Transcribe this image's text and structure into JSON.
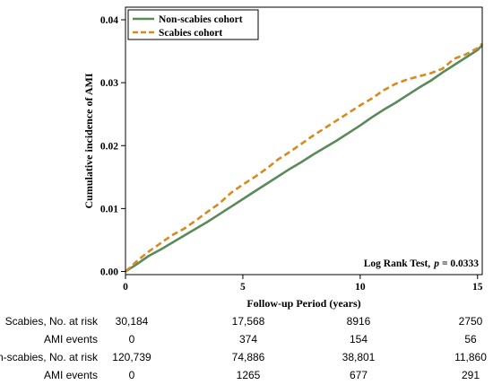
{
  "chart_data": {
    "type": "line",
    "title": "",
    "xlabel": "Follow-up Period (years)",
    "ylabel": "Cumulative incidence of AMI",
    "xlim": [
      0,
      15.2
    ],
    "ylim": [
      -0.0005,
      0.042
    ],
    "xticks": [
      "0",
      "5",
      "10",
      "15"
    ],
    "yticks": [
      "0.00",
      "0.01",
      "0.02",
      "0.03",
      "0.04"
    ],
    "legend_placement": "top-left",
    "annotation": {
      "prefix": "Log Rank Test,",
      "p": "p",
      "value": "= 0.0333"
    },
    "series": [
      {
        "name": "Non-scabies cohort",
        "color": "#5b8a5a",
        "dash": "solid",
        "x": [
          0,
          0.25,
          0.5,
          1,
          1.5,
          2,
          2.5,
          3,
          3.5,
          4,
          4.5,
          5,
          5.5,
          6,
          6.5,
          7,
          7.5,
          8,
          8.5,
          9,
          9.5,
          10,
          10.5,
          11,
          11.5,
          12,
          12.5,
          13,
          13.5,
          14,
          14.5,
          15,
          15.2
        ],
        "y": [
          0,
          0.0006,
          0.0012,
          0.0025,
          0.0035,
          0.0046,
          0.0057,
          0.0068,
          0.0079,
          0.0091,
          0.0103,
          0.0115,
          0.0127,
          0.0139,
          0.0151,
          0.0163,
          0.0174,
          0.0186,
          0.0197,
          0.0208,
          0.022,
          0.0232,
          0.0245,
          0.0257,
          0.0268,
          0.028,
          0.0292,
          0.0303,
          0.0316,
          0.0328,
          0.034,
          0.0352,
          0.036
        ]
      },
      {
        "name": "Scabies cohort",
        "color": "#d98a1e",
        "dash": "dashed",
        "x": [
          0,
          0.25,
          0.5,
          1,
          1.5,
          2,
          2.5,
          3,
          3.5,
          4,
          4.5,
          5,
          5.5,
          6,
          6.5,
          7,
          7.5,
          8,
          8.5,
          9,
          9.5,
          10,
          10.5,
          11,
          11.5,
          12,
          12.5,
          13,
          13.5,
          14,
          14.5,
          15,
          15.2
        ],
        "y": [
          0,
          0.0008,
          0.0017,
          0.0032,
          0.0045,
          0.0058,
          0.0068,
          0.0081,
          0.0095,
          0.0108,
          0.0125,
          0.0138,
          0.015,
          0.0163,
          0.0178,
          0.019,
          0.0203,
          0.0216,
          0.0228,
          0.024,
          0.0252,
          0.0264,
          0.0275,
          0.0288,
          0.0298,
          0.0305,
          0.031,
          0.0315,
          0.0322,
          0.0338,
          0.0345,
          0.0355,
          0.0362
        ]
      }
    ]
  },
  "risk_table": {
    "rows": [
      {
        "label": "Scabies, No. at risk",
        "values": [
          "30,184",
          "17,568",
          "8916",
          "2750"
        ]
      },
      {
        "label": "AMI events",
        "values": [
          "0",
          "374",
          "154",
          "56"
        ]
      },
      {
        "label": "Non-scabies, No. at risk",
        "values": [
          "120,739",
          "74,886",
          "38,801",
          "11,860"
        ]
      },
      {
        "label": "AMI events",
        "values": [
          "0",
          "1265",
          "677",
          "291"
        ]
      }
    ]
  }
}
